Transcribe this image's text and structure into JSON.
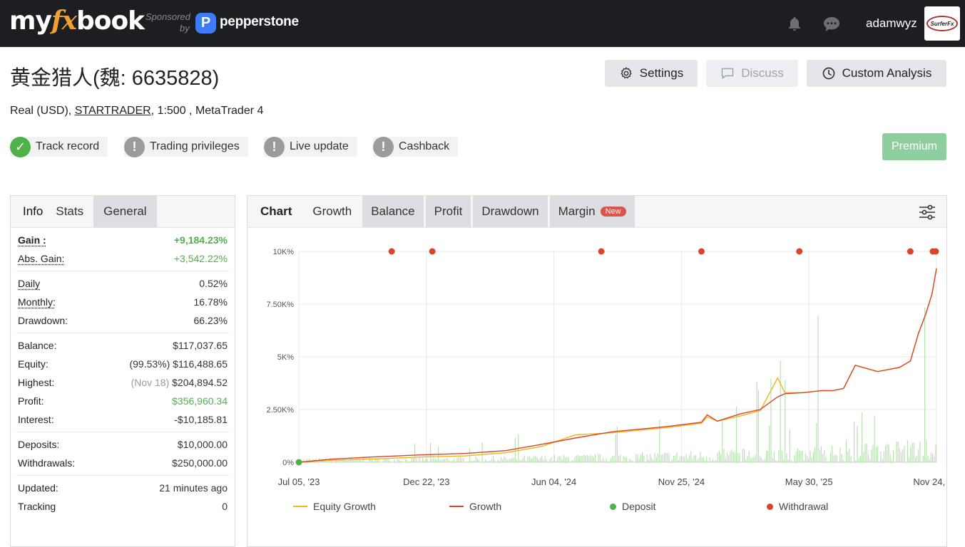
{
  "topbar": {
    "logo_my": "my",
    "logo_fx": "fx",
    "logo_book": "book",
    "sponsored": "Sponsored",
    "sponsored_by": "by",
    "sponsor_icon_letter": "P",
    "sponsor_name": "pepperstone",
    "username": "adamwyz",
    "avatar_text": "SurferFx",
    "icons": [
      "bell-icon",
      "chat-icon"
    ]
  },
  "header": {
    "title": "黄金猎人(魏: 6635828)",
    "account_type": "Real (USD), ",
    "broker": "STARTRADER",
    "details": ", 1:500 , MetaTrader 4",
    "buttons": {
      "settings": "Settings",
      "discuss": "Discuss",
      "custom_analysis": "Custom Analysis"
    }
  },
  "badges": [
    {
      "label": "Track record",
      "status": "ok"
    },
    {
      "label": "Trading privileges",
      "status": "warn"
    },
    {
      "label": "Live update",
      "status": "warn"
    },
    {
      "label": "Cashback",
      "status": "warn"
    }
  ],
  "premium_label": "Premium",
  "left_tabs": [
    "Info",
    "Stats",
    "General"
  ],
  "stats": {
    "gain_label": "Gain :",
    "gain_value": "+9,184.23%",
    "abs_gain_label": "Abs. Gain:",
    "abs_gain_value": "+3,542.22%",
    "daily_label": "Daily",
    "daily_value": "0.52%",
    "monthly_label": "Monthly:",
    "monthly_value": "16.78%",
    "drawdown_label": "Drawdown:",
    "drawdown_value": "66.23%",
    "balance_label": "Balance:",
    "balance_value": "$117,037.65",
    "equity_label": "Equity:",
    "equity_pct": "(99.53%)",
    "equity_value": "$116,488.65",
    "highest_label": "Highest:",
    "highest_date": "(Nov 18)",
    "highest_value": "$204,894.52",
    "profit_label": "Profit:",
    "profit_value": "$356,960.34",
    "interest_label": "Interest:",
    "interest_value": "-$10,185.81",
    "deposits_label": "Deposits:",
    "deposits_value": "$10,000.00",
    "withdrawals_label": "Withdrawals:",
    "withdrawals_value": "$250,000.00",
    "updated_label": "Updated:",
    "updated_value": "21 minutes ago",
    "tracking_label": "Tracking",
    "tracking_value": "0"
  },
  "chart_tabs": {
    "chart": "Chart",
    "growth": "Growth",
    "balance": "Balance",
    "profit": "Profit",
    "drawdown": "Drawdown",
    "margin": "Margin",
    "new_tag": "New"
  },
  "colors": {
    "growth": "#d9452b",
    "equity": "#f2b520",
    "deposit": "#4fb149",
    "withdrawal": "#d9452b",
    "volume": "#a8dca0"
  },
  "chart_data": {
    "type": "line",
    "ylim": [
      0,
      10000
    ],
    "yticks": [
      0,
      2500,
      5000,
      7500,
      10000
    ],
    "ytick_labels": [
      "0%",
      "2.50K%",
      "5K%",
      "7.50K%",
      "10K%"
    ],
    "xtick_labels": [
      "Jul 05, '23",
      "Dec 22, '23",
      "Jun 04, '24",
      "Nov 25, '24",
      "May 30, '25",
      "Nov 24, '25"
    ],
    "x_range": [
      "2023-07-05",
      "2025-11-30"
    ],
    "grid": true,
    "legend_position": "bottom",
    "series": [
      {
        "name": "Growth",
        "x": [
          "2023-07-05",
          "2023-08-20",
          "2023-10-15",
          "2023-12-22",
          "2024-02-20",
          "2024-04-15",
          "2024-06-04",
          "2024-07-20",
          "2024-09-10",
          "2024-11-25",
          "2025-01-10",
          "2025-01-18",
          "2025-02-01",
          "2025-03-05",
          "2025-04-01",
          "2025-04-25",
          "2025-05-05",
          "2025-05-30",
          "2025-06-25",
          "2025-07-10",
          "2025-07-25",
          "2025-08-10",
          "2025-09-10",
          "2025-10-10",
          "2025-10-25",
          "2025-11-05",
          "2025-11-15",
          "2025-11-24",
          "2025-11-30"
        ],
        "values": [
          0,
          150,
          250,
          350,
          420,
          550,
          850,
          1150,
          1450,
          1700,
          1900,
          2250,
          1950,
          2300,
          2500,
          3100,
          3250,
          3300,
          3400,
          3400,
          3500,
          4600,
          4300,
          4500,
          4800,
          6100,
          7000,
          8000,
          9200
        ]
      },
      {
        "name": "Equity Growth",
        "x": [
          "2023-07-05",
          "2023-08-20",
          "2023-10-15",
          "2023-12-22",
          "2024-02-20",
          "2024-04-15",
          "2024-06-04",
          "2024-07-20",
          "2024-09-10",
          "2024-11-25",
          "2025-01-10",
          "2025-01-18",
          "2025-02-01",
          "2025-03-05",
          "2025-04-01",
          "2025-04-25",
          "2025-05-05",
          "2025-05-30",
          "2025-06-25",
          "2025-07-10",
          "2025-07-25",
          "2025-08-10",
          "2025-09-10",
          "2025-10-10",
          "2025-10-25",
          "2025-11-05",
          "2025-11-15",
          "2025-11-24",
          "2025-11-30"
        ],
        "values": [
          0,
          100,
          150,
          250,
          300,
          450,
          750,
          1300,
          1400,
          1650,
          1850,
          2150,
          1950,
          2200,
          2450,
          4000,
          3300,
          3300,
          3400,
          3400,
          3500,
          4600,
          4300,
          4500,
          4800,
          6100,
          7000,
          8000,
          9200
        ]
      }
    ],
    "deposits": [
      {
        "x": "2023-07-05",
        "y": 0
      }
    ],
    "withdrawals": [
      "2023-11-10",
      "2024-01-05",
      "2024-08-25",
      "2025-01-10",
      "2025-05-25",
      "2025-10-25",
      "2025-11-25",
      "2025-11-29"
    ],
    "legend": [
      "Equity Growth",
      "Growth",
      "Deposit",
      "Withdrawal"
    ]
  }
}
